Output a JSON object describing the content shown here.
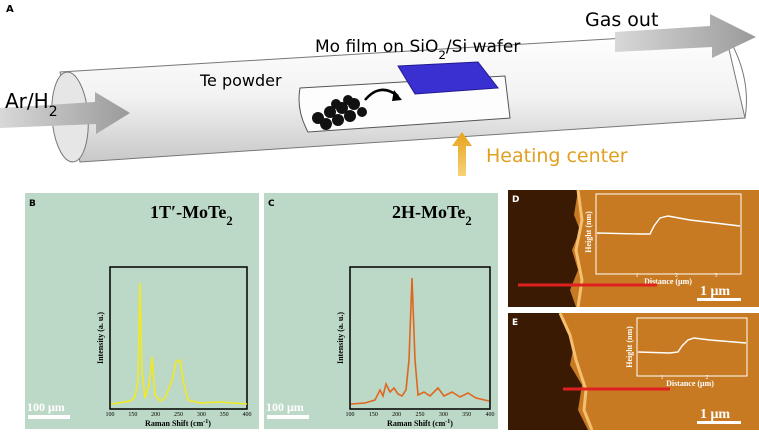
{
  "panel_a": {
    "label": "A",
    "gas_out": "Gas out",
    "mo_film": [
      "Mo film on SiO",
      "2",
      "/Si wafer"
    ],
    "te_powder": "Te powder",
    "ar_h2": [
      "Ar/H",
      "2"
    ],
    "heating": "Heating center"
  },
  "panel_b": {
    "label": "B",
    "title": [
      "1T′-MoTe",
      "2"
    ],
    "y_label": "Intensity (a. u.)",
    "x_label": [
      "Raman Shift (cm",
      "-1",
      ")"
    ],
    "x_ticks": [
      "100",
      "150",
      "200",
      "250",
      "300",
      "350",
      "400"
    ],
    "scale_bar": "100 μm"
  },
  "panel_c": {
    "label": "C",
    "title": [
      "2H-MoTe",
      "2"
    ],
    "y_label": "Intensity (a. u.)",
    "x_label": [
      "Raman Shift (cm",
      "-1",
      ")"
    ],
    "x_ticks": [
      "100",
      "150",
      "200",
      "250",
      "300",
      "350",
      "400"
    ],
    "scale_bar": "100 μm"
  },
  "panel_d": {
    "label": "D",
    "y_label": "Height (nm)",
    "x_label": "Distance (μm)",
    "x_ticks": [
      "1",
      "2",
      "3"
    ],
    "scale_bar": "1 μm"
  },
  "panel_e": {
    "label": "E",
    "y_label": "Height (nm)",
    "x_label": "Distance (μm)",
    "x_ticks": [
      "1",
      "2"
    ],
    "scale_bar": "1 μm"
  }
}
